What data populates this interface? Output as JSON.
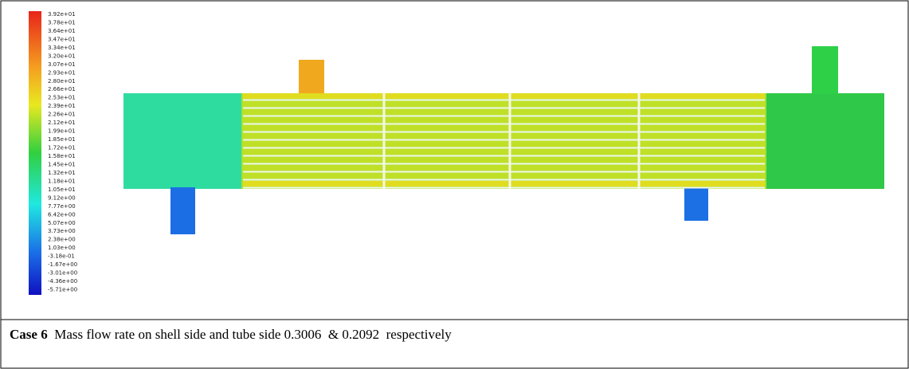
{
  "figure": {
    "colorbar_labels": [
      "3.92e+01",
      "3.78e+01",
      "3.64e+01",
      "3.47e+01",
      "3.34e+01",
      "3.20e+01",
      "3.07e+01",
      "2.93e+01",
      "2.80e+01",
      "2.66e+01",
      "2.53e+01",
      "2.39e+01",
      "2.26e+01",
      "2.12e+01",
      "1.99e+01",
      "1.85e+01",
      "1.72e+01",
      "1.58e+01",
      "1.45e+01",
      "1.32e+01",
      "1.18e+01",
      "1.05e+01",
      "9.12e+00",
      "7.77e+00",
      "6.42e+00",
      "5.07e+00",
      "3.73e+00",
      "2.38e+00",
      "1.03e+00",
      "-3.18e-01",
      "-1.67e+00",
      "-3.01e+00",
      "-4.36e+00",
      "-5.71e+00"
    ]
  },
  "caption": {
    "label": "Case 6",
    "text": "Mass flow rate on shell side and tube side 0.3006  & 0.2092  respectively"
  }
}
